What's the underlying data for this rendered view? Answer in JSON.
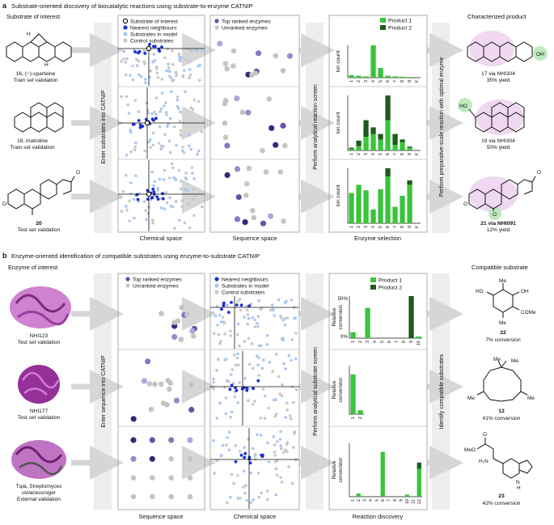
{
  "panel_a": {
    "letter": "a",
    "title": "Substrate-oriented discovery of biocatalytic reactions using substrate-to-enzyme CATNIP",
    "left_header": "Substrate of interest",
    "right_header": "Characterized product",
    "arrow_enter": "Enter substrates into CATNIP",
    "arrow_screen": "Perform analytical reaction screen",
    "arrow_prep": "Perform preparative-scale reaction with optimal enzyme",
    "chem_legend": [
      "Substrate of interest",
      "Nearest neighbours",
      "Substrates in model",
      "Control substrates"
    ],
    "seq_legend": [
      "Top ranked enzymes",
      "Unranked enzymes"
    ],
    "bar_legend": [
      "Product 1",
      "Product 2"
    ],
    "bar_ylabel": "Ion count",
    "col_labels": [
      "Chemical space",
      "Sequence space",
      "Enzyme selection"
    ],
    "substrates": [
      {
        "name": "16, (−)-sparteine",
        "set": "Train set validation"
      },
      {
        "name": "18, matridine",
        "set": "Train set validation"
      },
      {
        "name": "20",
        "set": "Test set validation"
      }
    ],
    "products": [
      {
        "name": "17 via NHI304",
        "yield": "35% yield"
      },
      {
        "name": "19 via NHI304",
        "yield": "50% yield"
      },
      {
        "name": "21 via NHI091",
        "yield": "12% yield"
      }
    ],
    "struct_labels": {
      "oh": "OH",
      "ho": "HO",
      "h": "H",
      "o": "O"
    }
  },
  "panel_b": {
    "letter": "b",
    "title": "Enzyme-oriented identification of compatible substrates using enzyme-to-substrate CATNIP",
    "left_header": "Enzyme of interest",
    "right_header": "Compatible substrate",
    "arrow_enter": "Enter sequence into CATNIP",
    "arrow_screen": "Perform analytical substrate screen",
    "arrow_identify": "Identify compatible substrates",
    "seq_legend": [
      "Top ranked enzymes",
      "Unranked enzymes"
    ],
    "chem_legend": [
      "Nearest neighbours",
      "Substrates in model",
      "Control substrates"
    ],
    "bar_legend": [
      "Product 1",
      "Product 2"
    ],
    "bar_ylabel_line1": "Relative",
    "bar_ylabel_line2": "conversion",
    "bar_ytop": "50%",
    "bar_ybottom": "0%",
    "col_labels": [
      "Sequence space",
      "Chemical space",
      "Reaction discovery"
    ],
    "enzymes": [
      {
        "name": "NHI123",
        "set": "Test set validation"
      },
      {
        "name": "NHI177",
        "set": "Test set validation"
      },
      {
        "name": "TqaL Streptomyces",
        "name2": "violaceusniger",
        "set": "External validation"
      }
    ],
    "compounds": [
      {
        "name": "22",
        "conversion": "7% conversion"
      },
      {
        "name": "12",
        "conversion": "41% conversion"
      },
      {
        "name": "23",
        "conversion": "42% conversion"
      }
    ],
    "struct_labels": {
      "me": "Me",
      "ho": "HO",
      "oh": "OH",
      "come": "COMe",
      "meo": "MeO",
      "o": "O",
      "h2n": "H₂N",
      "nh": "N",
      "h": "H"
    }
  },
  "chart_data": [
    {
      "type": "bar",
      "panel": "a",
      "row": 1,
      "categories": [
        "1",
        "2",
        "3",
        "4",
        "5",
        "6",
        "7",
        "8",
        "9",
        "X"
      ],
      "series": [
        {
          "name": "Product 1",
          "values": [
            0.08,
            0.06,
            0.04,
            1.0,
            0.3,
            0.06,
            0.04,
            0.03,
            0.02,
            0
          ]
        },
        {
          "name": "Product 2",
          "values": [
            0,
            0,
            0,
            0,
            0,
            0,
            0,
            0,
            0,
            0
          ]
        }
      ],
      "ylabel": "Ion count"
    },
    {
      "type": "bar",
      "panel": "a",
      "row": 2,
      "categories": [
        "1",
        "2",
        "3",
        "4",
        "5",
        "6",
        "7",
        "8",
        "9",
        "X"
      ],
      "series": [
        {
          "name": "Product 1",
          "values": [
            0.03,
            0.08,
            0.25,
            0.3,
            0.2,
            0.55,
            0.1,
            0.15,
            0.05,
            0
          ]
        },
        {
          "name": "Product 2",
          "values": [
            0.02,
            0.1,
            0.3,
            0.12,
            0.1,
            0.45,
            0.2,
            0.05,
            0.02,
            0
          ]
        }
      ],
      "ylabel": "Ion count"
    },
    {
      "type": "bar",
      "panel": "a",
      "row": 3,
      "categories": [
        "1",
        "2",
        "3",
        "4",
        "5",
        "6",
        "7",
        "8",
        "9",
        "X"
      ],
      "series": [
        {
          "name": "Product 1",
          "values": [
            0.55,
            0.7,
            0.6,
            0.25,
            0.62,
            0.85,
            0.3,
            0.5,
            0.7,
            0
          ]
        },
        {
          "name": "Product 2",
          "values": [
            0,
            0,
            0,
            0,
            0,
            0.15,
            0,
            0,
            0.08,
            0
          ]
        }
      ],
      "ylabel": "Ion count"
    },
    {
      "type": "bar",
      "panel": "b",
      "row": 1,
      "categories": [
        "1",
        "2",
        "3",
        "4",
        "5",
        "6",
        "7",
        "8",
        "9",
        "10"
      ],
      "series": [
        {
          "name": "Product 1",
          "values": [
            7,
            0,
            36,
            0,
            0,
            0,
            0,
            0,
            0,
            2
          ]
        },
        {
          "name": "Product 2",
          "values": [
            0,
            0,
            0,
            0,
            0,
            0,
            0,
            0,
            50,
            0
          ]
        }
      ],
      "ylabel": "Relative conversion",
      "ylim": [
        0,
        50
      ]
    },
    {
      "type": "bar",
      "panel": "b",
      "row": 2,
      "categories": [
        "1",
        "2"
      ],
      "series": [
        {
          "name": "Product 1",
          "values": [
            41,
            4
          ]
        },
        {
          "name": "Product 2",
          "values": [
            0,
            0
          ]
        }
      ],
      "ylabel": "Relative conversion",
      "ylim": [
        0,
        50
      ]
    },
    {
      "type": "bar",
      "panel": "b",
      "row": 3,
      "categories": [
        "1",
        "2",
        "3",
        "4",
        "5",
        "6",
        "7",
        "8",
        "9",
        "10",
        "11",
        "12"
      ],
      "series": [
        {
          "name": "Product 1",
          "values": [
            0,
            3,
            0,
            0,
            0,
            42,
            0,
            0,
            0,
            2,
            0,
            26
          ]
        },
        {
          "name": "Product 2",
          "values": [
            0,
            0,
            0,
            0,
            0,
            0,
            0,
            0,
            0,
            0,
            0,
            6
          ]
        }
      ],
      "ylabel": "Relative conversion",
      "ylim": [
        0,
        50
      ]
    }
  ],
  "colors": {
    "product1": "#39c43a",
    "product2": "#1e5a1e",
    "navy": "#1a2fd6",
    "light_blue": "#a9c9ef",
    "grey": "#c8c8c8",
    "purple": "#6b4fa8",
    "arrow": "#d6d6d6"
  }
}
